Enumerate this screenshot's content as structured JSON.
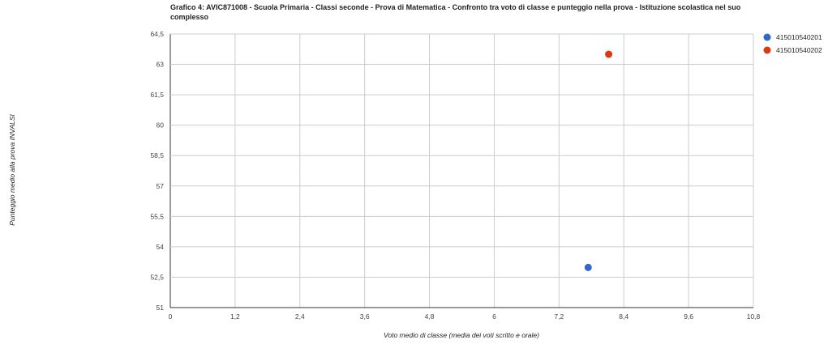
{
  "chart_data": {
    "type": "scatter",
    "title": "Grafico 4: AVIC871008 - Scuola Primaria - Classi seconde - Prova di Matematica - Confronto tra voto di classe e punteggio nella prova - Istituzione scolastica nel suo complesso",
    "xlabel": "Voto medio di classe (media dei voti scritto e orale)",
    "ylabel": "Punteggio medio alla prova INVALSI",
    "xlim": [
      0,
      10.8
    ],
    "ylim": [
      51,
      64.5
    ],
    "x_ticks": [
      "0",
      "1,2",
      "2,4",
      "3,6",
      "4,8",
      "6",
      "7,2",
      "8,4",
      "9,6",
      "10,8"
    ],
    "y_ticks": [
      "51",
      "52,5",
      "54",
      "55,5",
      "57",
      "58,5",
      "60",
      "61,5",
      "63",
      "64,5"
    ],
    "grid": true,
    "legend_position": "right",
    "series": [
      {
        "name": "415010540201",
        "color": "#3366cc",
        "points": [
          {
            "x": 7.74,
            "y": 52.98
          }
        ]
      },
      {
        "name": "415010540202",
        "color": "#dc3912",
        "points": [
          {
            "x": 8.12,
            "y": 63.5
          }
        ]
      }
    ]
  }
}
